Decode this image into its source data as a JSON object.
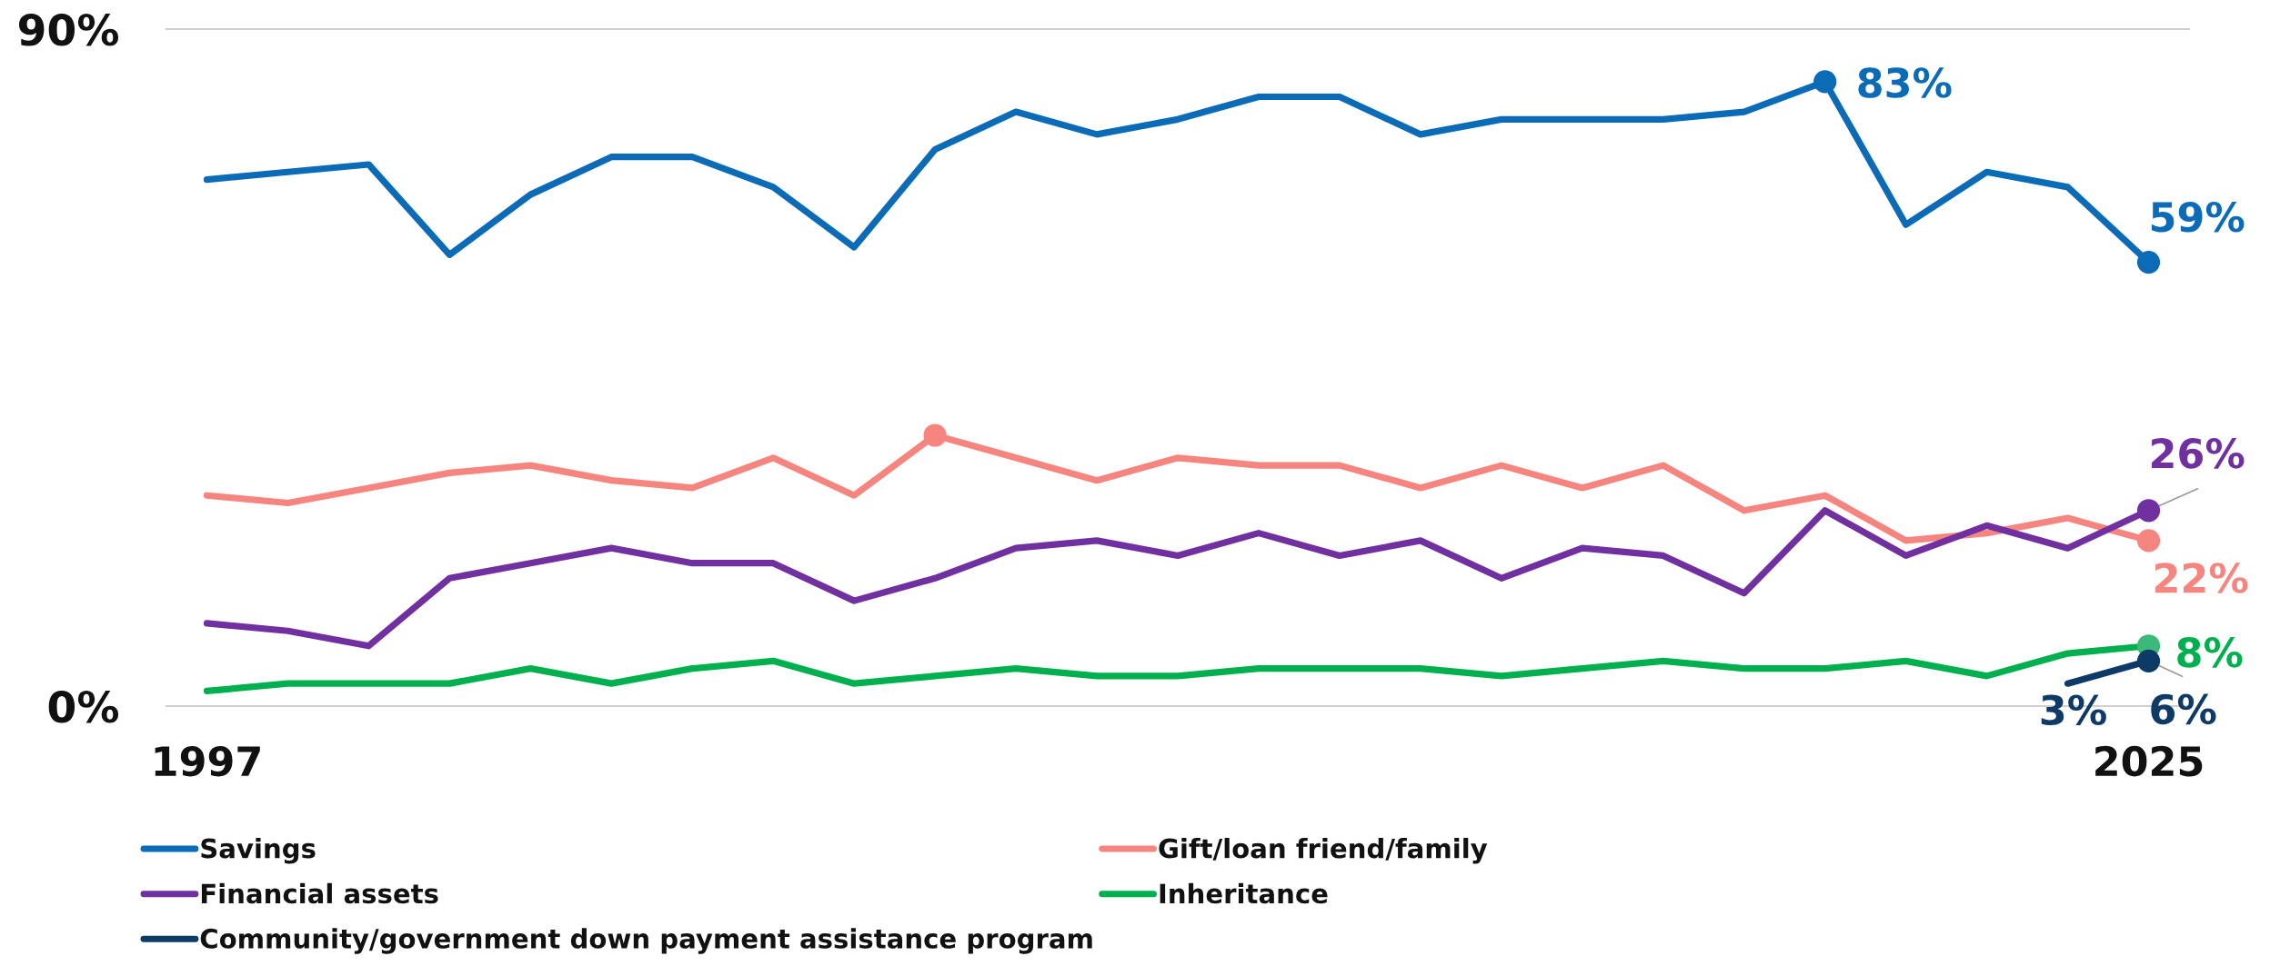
{
  "chart_data": {
    "type": "line",
    "categories": [
      "1997",
      null,
      null,
      null,
      null,
      null,
      null,
      null,
      null,
      null,
      null,
      null,
      null,
      null,
      null,
      null,
      null,
      null,
      null,
      null,
      null,
      null,
      null,
      null,
      "2025"
    ],
    "ylim": [
      0,
      90
    ],
    "yticks": [
      {
        "value": 0,
        "label": "0%"
      },
      {
        "value": 90,
        "label": "90%"
      }
    ],
    "legend": "bottom",
    "series": [
      {
        "name": "Savings",
        "color": "#0b6bb7",
        "values": [
          70,
          71,
          72,
          60,
          68,
          73,
          73,
          69,
          61,
          74,
          79,
          76,
          78,
          81,
          81,
          76,
          78,
          78,
          78,
          79,
          83,
          64,
          71,
          69,
          59
        ],
        "value_labels": [
          null,
          null,
          null,
          null,
          null,
          null,
          null,
          null,
          null,
          null,
          null,
          null,
          null,
          null,
          null,
          null,
          null,
          null,
          null,
          null,
          "83%",
          null,
          null,
          null,
          "59%"
        ]
      },
      {
        "name": "Gift/loan friend/family",
        "color": "#f7857f",
        "values": [
          28,
          27,
          29,
          31,
          32,
          30,
          29,
          33,
          28,
          36,
          33,
          30,
          33,
          32,
          32,
          29,
          32,
          29,
          32,
          26,
          28,
          22,
          23,
          25,
          22
        ],
        "value_labels": [
          null,
          null,
          null,
          null,
          null,
          null,
          null,
          null,
          null,
          null,
          null,
          null,
          null,
          null,
          null,
          null,
          null,
          null,
          null,
          null,
          null,
          null,
          null,
          null,
          "22%"
        ]
      },
      {
        "name": "Financial assets",
        "color": "#7030a0",
        "values": [
          11,
          10,
          8,
          17,
          19,
          21,
          19,
          19,
          14,
          17,
          21,
          22,
          20,
          23,
          20,
          22,
          17,
          21,
          20,
          15,
          26,
          20,
          24,
          21,
          26
        ],
        "value_labels": [
          null,
          null,
          null,
          null,
          null,
          null,
          null,
          null,
          null,
          null,
          null,
          null,
          null,
          null,
          null,
          null,
          null,
          null,
          null,
          null,
          null,
          null,
          null,
          null,
          "26%"
        ]
      },
      {
        "name": "Inheritance",
        "color": "#00b04f",
        "values": [
          2,
          3,
          3,
          3,
          5,
          3,
          5,
          6,
          3,
          4,
          5,
          4,
          4,
          5,
          5,
          5,
          4,
          5,
          6,
          5,
          5,
          6,
          4,
          7,
          8
        ],
        "value_labels": [
          null,
          null,
          null,
          null,
          null,
          null,
          null,
          null,
          null,
          null,
          null,
          null,
          null,
          null,
          null,
          null,
          null,
          null,
          null,
          null,
          null,
          null,
          null,
          null,
          "8%"
        ]
      },
      {
        "name": "Community/government down payment assistance program",
        "color": "#0d3a66",
        "values": [
          null,
          null,
          null,
          null,
          null,
          null,
          null,
          null,
          null,
          null,
          null,
          null,
          null,
          null,
          null,
          null,
          null,
          null,
          null,
          null,
          null,
          null,
          null,
          3,
          6
        ],
        "value_labels": [
          null,
          null,
          null,
          null,
          null,
          null,
          null,
          null,
          null,
          null,
          null,
          null,
          null,
          null,
          null,
          null,
          null,
          null,
          null,
          null,
          null,
          null,
          null,
          "3%",
          "6%"
        ]
      },
      {
        "type": "scatter",
        "marker": "circle",
        "color": "#0b6bb7",
        "values": [
          null,
          null,
          null,
          null,
          null,
          null,
          null,
          null,
          null,
          null,
          null,
          null,
          null,
          null,
          null,
          null,
          null,
          null,
          null,
          null,
          83,
          null,
          null,
          null,
          59
        ]
      },
      {
        "type": "scatter",
        "marker": "circle",
        "color": "#f7857f",
        "values": [
          null,
          null,
          null,
          null,
          null,
          null,
          null,
          null,
          null,
          36,
          null,
          null,
          null,
          null,
          null,
          null,
          null,
          null,
          null,
          null,
          null,
          null,
          null,
          null,
          22
        ]
      },
      {
        "type": "scatter",
        "marker": "circle",
        "color": "#7030a0",
        "values": [
          null,
          null,
          null,
          null,
          null,
          null,
          null,
          null,
          null,
          null,
          null,
          null,
          null,
          null,
          null,
          null,
          null,
          null,
          null,
          null,
          null,
          null,
          null,
          null,
          26
        ]
      },
      {
        "type": "scatter",
        "marker": "circle",
        "color": "#3cb878",
        "values": [
          null,
          null,
          null,
          null,
          null,
          null,
          null,
          null,
          null,
          null,
          null,
          null,
          null,
          null,
          null,
          null,
          null,
          null,
          null,
          null,
          null,
          null,
          null,
          null,
          8
        ]
      },
      {
        "type": "scatter",
        "marker": "circle",
        "color": "#0d3a66",
        "values": [
          null,
          null,
          null,
          null,
          null,
          null,
          null,
          null,
          null,
          null,
          null,
          null,
          null,
          null,
          null,
          null,
          null,
          null,
          null,
          null,
          null,
          null,
          null,
          null,
          6
        ]
      }
    ]
  }
}
